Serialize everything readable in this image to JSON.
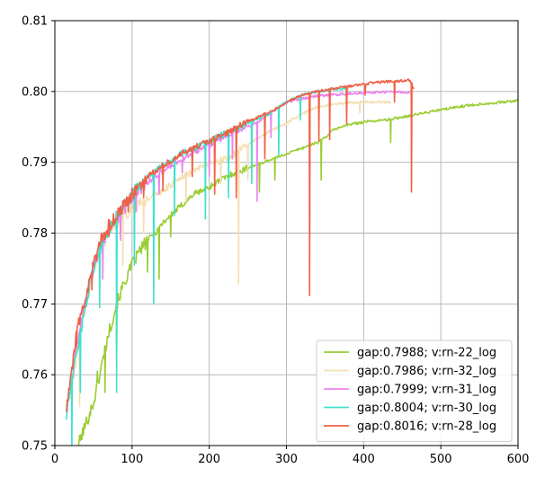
{
  "chart_data": {
    "type": "line",
    "title": "",
    "xlabel": "",
    "ylabel": "",
    "xlim": [
      0,
      600
    ],
    "ylim": [
      0.75,
      0.81
    ],
    "xticks": [
      0,
      100,
      200,
      300,
      400,
      500,
      600
    ],
    "xtick_labels": [
      "0",
      "100",
      "200",
      "300",
      "400",
      "500",
      "600"
    ],
    "yticks": [
      0.75,
      0.76,
      0.77,
      0.78,
      0.79,
      0.8,
      0.81
    ],
    "ytick_labels": [
      "0.75",
      "0.76",
      "0.77",
      "0.78",
      "0.79",
      "0.80",
      "0.81"
    ],
    "grid": true,
    "legend_position": "lower-right",
    "series": [
      {
        "name": "gap:0.7988; v:rn-22_log",
        "color": "#9acd32",
        "points": [
          [
            30,
            0.75
          ],
          [
            40,
            0.753
          ],
          [
            50,
            0.756
          ],
          [
            60,
            0.761
          ],
          [
            70,
            0.766
          ],
          [
            80,
            0.77
          ],
          [
            90,
            0.773
          ],
          [
            100,
            0.7755
          ],
          [
            110,
            0.7775
          ],
          [
            120,
            0.779
          ],
          [
            130,
            0.78
          ],
          [
            140,
            0.7815
          ],
          [
            150,
            0.7825
          ],
          [
            160,
            0.7835
          ],
          [
            170,
            0.7845
          ],
          [
            180,
            0.7855
          ],
          [
            190,
            0.786
          ],
          [
            200,
            0.7865
          ],
          [
            210,
            0.7872
          ],
          [
            220,
            0.7878
          ],
          [
            230,
            0.7884
          ],
          [
            240,
            0.7888
          ],
          [
            250,
            0.7892
          ],
          [
            260,
            0.7896
          ],
          [
            270,
            0.79
          ],
          [
            280,
            0.7904
          ],
          [
            290,
            0.7908
          ],
          [
            300,
            0.7912
          ],
          [
            310,
            0.7916
          ],
          [
            320,
            0.792
          ],
          [
            330,
            0.7924
          ],
          [
            340,
            0.7928
          ],
          [
            350,
            0.7935
          ],
          [
            360,
            0.7945
          ],
          [
            370,
            0.795
          ],
          [
            380,
            0.7953
          ],
          [
            390,
            0.7955
          ],
          [
            400,
            0.7957
          ],
          [
            410,
            0.7958
          ],
          [
            420,
            0.7959
          ],
          [
            430,
            0.796
          ],
          [
            440,
            0.7962
          ],
          [
            450,
            0.7964
          ],
          [
            460,
            0.7966
          ],
          [
            470,
            0.7968
          ],
          [
            480,
            0.797
          ],
          [
            490,
            0.7972
          ],
          [
            500,
            0.7974
          ],
          [
            520,
            0.7978
          ],
          [
            540,
            0.7981
          ],
          [
            560,
            0.7983
          ],
          [
            580,
            0.7985
          ],
          [
            600,
            0.7987
          ]
        ],
        "dips": [
          [
            55,
            0.7605
          ],
          [
            65,
            0.7575
          ],
          [
            80,
            0.7625
          ],
          [
            120,
            0.7745
          ],
          [
            135,
            0.7735
          ],
          [
            150,
            0.7795
          ],
          [
            265,
            0.7858
          ],
          [
            285,
            0.7875
          ],
          [
            345,
            0.7875
          ],
          [
            435,
            0.7928
          ]
        ]
      },
      {
        "name": "gap:0.7986; v:rn-32_log",
        "color": "#f5deb3",
        "points": [
          [
            20,
            0.757
          ],
          [
            30,
            0.764
          ],
          [
            40,
            0.77
          ],
          [
            50,
            0.775
          ],
          [
            60,
            0.778
          ],
          [
            70,
            0.78
          ],
          [
            80,
            0.7815
          ],
          [
            90,
            0.7825
          ],
          [
            100,
            0.7835
          ],
          [
            110,
            0.784
          ],
          [
            120,
            0.7848
          ],
          [
            130,
            0.7855
          ],
          [
            140,
            0.786
          ],
          [
            150,
            0.7868
          ],
          [
            160,
            0.7875
          ],
          [
            170,
            0.7882
          ],
          [
            180,
            0.7888
          ],
          [
            190,
            0.7893
          ],
          [
            200,
            0.7898
          ],
          [
            210,
            0.79
          ],
          [
            220,
            0.7905
          ],
          [
            230,
            0.791
          ],
          [
            240,
            0.7918
          ],
          [
            250,
            0.7925
          ],
          [
            260,
            0.7932
          ],
          [
            270,
            0.7938
          ],
          [
            280,
            0.7945
          ],
          [
            290,
            0.795
          ],
          [
            300,
            0.7955
          ],
          [
            310,
            0.7962
          ],
          [
            320,
            0.7968
          ],
          [
            330,
            0.7973
          ],
          [
            340,
            0.7978
          ],
          [
            350,
            0.798
          ],
          [
            360,
            0.7982
          ],
          [
            370,
            0.7983
          ],
          [
            380,
            0.7984
          ],
          [
            390,
            0.7984
          ],
          [
            400,
            0.7985
          ],
          [
            410,
            0.7985
          ],
          [
            420,
            0.7985
          ],
          [
            435,
            0.7985
          ]
        ],
        "dips": [
          [
            32,
            0.7555
          ],
          [
            58,
            0.7715
          ],
          [
            88,
            0.7755
          ],
          [
            115,
            0.78
          ],
          [
            170,
            0.7845
          ],
          [
            215,
            0.787
          ],
          [
            238,
            0.7728
          ],
          [
            250,
            0.7875
          ],
          [
            330,
            0.7925
          ],
          [
            395,
            0.797
          ]
        ]
      },
      {
        "name": "gap:0.7999; v:rn-31_log",
        "color": "#ee82ee",
        "points": [
          [
            20,
            0.758
          ],
          [
            30,
            0.765
          ],
          [
            40,
            0.7705
          ],
          [
            50,
            0.775
          ],
          [
            60,
            0.7785
          ],
          [
            70,
            0.7805
          ],
          [
            80,
            0.782
          ],
          [
            90,
            0.7835
          ],
          [
            100,
            0.7848
          ],
          [
            110,
            0.786
          ],
          [
            120,
            0.787
          ],
          [
            130,
            0.788
          ],
          [
            140,
            0.7888
          ],
          [
            150,
            0.7895
          ],
          [
            160,
            0.7902
          ],
          [
            170,
            0.7908
          ],
          [
            180,
            0.7914
          ],
          [
            190,
            0.792
          ],
          [
            200,
            0.7925
          ],
          [
            210,
            0.793
          ],
          [
            220,
            0.7935
          ],
          [
            230,
            0.794
          ],
          [
            240,
            0.7945
          ],
          [
            250,
            0.795
          ],
          [
            260,
            0.7955
          ],
          [
            270,
            0.7962
          ],
          [
            280,
            0.797
          ],
          [
            290,
            0.7978
          ],
          [
            300,
            0.7985
          ],
          [
            310,
            0.7988
          ],
          [
            320,
            0.799
          ],
          [
            330,
            0.7992
          ],
          [
            340,
            0.7994
          ],
          [
            360,
            0.7995
          ],
          [
            380,
            0.7997
          ],
          [
            400,
            0.7998
          ],
          [
            420,
            0.7999
          ],
          [
            440,
            0.7999
          ],
          [
            460,
            0.7999
          ]
        ],
        "dips": [
          [
            40,
            0.7695
          ],
          [
            62,
            0.7735
          ],
          [
            85,
            0.779
          ],
          [
            105,
            0.783
          ],
          [
            135,
            0.7855
          ],
          [
            165,
            0.7885
          ],
          [
            200,
            0.788
          ],
          [
            230,
            0.7905
          ],
          [
            262,
            0.7845
          ],
          [
            280,
            0.7935
          ]
        ]
      },
      {
        "name": "gap:0.8004; v:rn-30_log",
        "color": "#40e0d0",
        "points": [
          [
            15,
            0.754
          ],
          [
            20,
            0.758
          ],
          [
            30,
            0.764
          ],
          [
            40,
            0.77
          ],
          [
            50,
            0.775
          ],
          [
            60,
            0.778
          ],
          [
            70,
            0.7805
          ],
          [
            80,
            0.7825
          ],
          [
            90,
            0.784
          ],
          [
            100,
            0.7855
          ],
          [
            110,
            0.7868
          ],
          [
            120,
            0.7878
          ],
          [
            130,
            0.7888
          ],
          [
            140,
            0.7895
          ],
          [
            150,
            0.7902
          ],
          [
            160,
            0.791
          ],
          [
            170,
            0.7915
          ],
          [
            180,
            0.792
          ],
          [
            190,
            0.7925
          ],
          [
            200,
            0.793
          ],
          [
            210,
            0.7935
          ],
          [
            220,
            0.794
          ],
          [
            230,
            0.7945
          ],
          [
            240,
            0.795
          ],
          [
            250,
            0.7955
          ],
          [
            260,
            0.796
          ],
          [
            270,
            0.7965
          ],
          [
            280,
            0.797
          ],
          [
            290,
            0.7978
          ],
          [
            300,
            0.7985
          ],
          [
            310,
            0.799
          ],
          [
            320,
            0.7995
          ],
          [
            330,
            0.7998
          ],
          [
            340,
            0.8
          ],
          [
            350,
            0.8002
          ],
          [
            360,
            0.8003
          ],
          [
            370,
            0.8004
          ],
          [
            380,
            0.8004
          ]
        ],
        "dips": [
          [
            22,
            0.7495
          ],
          [
            33,
            0.7575
          ],
          [
            58,
            0.7695
          ],
          [
            80,
            0.7575
          ],
          [
            103,
            0.7755
          ],
          [
            128,
            0.77
          ],
          [
            155,
            0.7825
          ],
          [
            195,
            0.782
          ],
          [
            225,
            0.785
          ],
          [
            255,
            0.787
          ],
          [
            290,
            0.791
          ],
          [
            318,
            0.796
          ]
        ]
      },
      {
        "name": "gap:0.8016; v:rn-28_log",
        "color": "#f06046",
        "points": [
          [
            15,
            0.755
          ],
          [
            20,
            0.759
          ],
          [
            30,
            0.767
          ],
          [
            40,
            0.771
          ],
          [
            50,
            0.7755
          ],
          [
            60,
            0.779
          ],
          [
            70,
            0.781
          ],
          [
            80,
            0.7825
          ],
          [
            90,
            0.784
          ],
          [
            100,
            0.7855
          ],
          [
            110,
            0.7865
          ],
          [
            120,
            0.7878
          ],
          [
            130,
            0.7888
          ],
          [
            140,
            0.7895
          ],
          [
            150,
            0.7902
          ],
          [
            160,
            0.791
          ],
          [
            170,
            0.7915
          ],
          [
            180,
            0.792
          ],
          [
            190,
            0.7925
          ],
          [
            200,
            0.793
          ],
          [
            210,
            0.7935
          ],
          [
            220,
            0.794
          ],
          [
            230,
            0.7945
          ],
          [
            240,
            0.7952
          ],
          [
            250,
            0.7958
          ],
          [
            260,
            0.7962
          ],
          [
            270,
            0.7968
          ],
          [
            280,
            0.7972
          ],
          [
            290,
            0.7978
          ],
          [
            300,
            0.7984
          ],
          [
            310,
            0.799
          ],
          [
            320,
            0.7995
          ],
          [
            330,
            0.7998
          ],
          [
            340,
            0.8
          ],
          [
            350,
            0.8002
          ],
          [
            360,
            0.8004
          ],
          [
            370,
            0.8006
          ],
          [
            380,
            0.8007
          ],
          [
            390,
            0.8009
          ],
          [
            400,
            0.801
          ],
          [
            410,
            0.8012
          ],
          [
            420,
            0.8013
          ],
          [
            430,
            0.8014
          ],
          [
            440,
            0.8014
          ],
          [
            450,
            0.8015
          ],
          [
            460,
            0.8016
          ],
          [
            465,
            0.8003
          ]
        ],
        "dips": [
          [
            28,
            0.764
          ],
          [
            48,
            0.772
          ],
          [
            70,
            0.7795
          ],
          [
            95,
            0.783
          ],
          [
            115,
            0.785
          ],
          [
            140,
            0.786
          ],
          [
            178,
            0.788
          ],
          [
            207,
            0.7855
          ],
          [
            235,
            0.785
          ],
          [
            272,
            0.7905
          ],
          [
            330,
            0.7712
          ],
          [
            342,
            0.793
          ],
          [
            356,
            0.7932
          ],
          [
            378,
            0.7955
          ],
          [
            402,
            0.7995
          ],
          [
            440,
            0.7985
          ],
          [
            462,
            0.7858
          ]
        ]
      }
    ]
  }
}
